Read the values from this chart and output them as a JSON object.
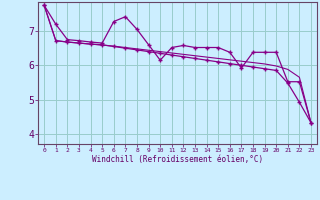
{
  "x_labels": [
    "0",
    "1",
    "2",
    "3",
    "4",
    "5",
    "6",
    "7",
    "8",
    "9",
    "10",
    "11",
    "12",
    "13",
    "14",
    "15",
    "16",
    "17",
    "18",
    "19",
    "20",
    "21",
    "22",
    "23"
  ],
  "xlabel": "Windchill (Refroidissement éolien,°C)",
  "background_color": "#cceeff",
  "grid_color": "#99cccc",
  "line_color": "#880088",
  "ylim": [
    3.7,
    7.85
  ],
  "xlim": [
    -0.5,
    23.5
  ],
  "yticks": [
    4,
    5,
    6,
    7
  ],
  "series1": [
    7.75,
    7.2,
    6.75,
    6.72,
    6.68,
    6.65,
    7.28,
    7.42,
    7.05,
    6.6,
    6.15,
    6.52,
    6.58,
    6.52,
    6.52,
    6.52,
    6.38,
    5.92,
    6.38,
    6.38,
    6.38,
    5.52,
    5.52,
    4.32
  ],
  "series2": [
    7.75,
    6.72,
    6.68,
    6.65,
    6.62,
    6.6,
    6.55,
    6.5,
    6.45,
    6.4,
    6.35,
    6.3,
    6.25,
    6.2,
    6.15,
    6.1,
    6.05,
    6.0,
    5.95,
    5.9,
    5.85,
    5.48,
    4.92,
    4.32
  ],
  "series3": [
    7.75,
    6.72,
    6.68,
    6.65,
    6.62,
    6.59,
    6.56,
    6.52,
    6.48,
    6.44,
    6.4,
    6.36,
    6.32,
    6.28,
    6.24,
    6.2,
    6.16,
    6.12,
    6.08,
    6.04,
    5.98,
    5.88,
    5.65,
    4.32
  ]
}
